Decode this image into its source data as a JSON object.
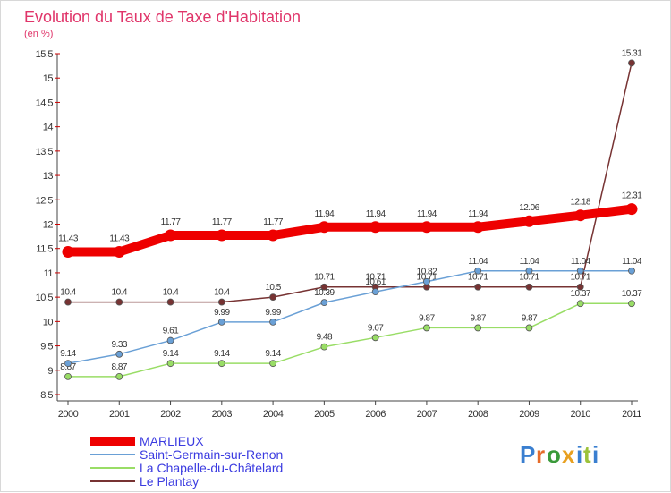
{
  "chart_data": {
    "type": "line",
    "title": "Evolution du Taux de Taxe d'Habitation",
    "subtitle": "(en %)",
    "xlabel": "",
    "ylabel": "",
    "categories": [
      "2000",
      "2001",
      "2002",
      "2003",
      "2004",
      "2005",
      "2006",
      "2007",
      "2008",
      "2009",
      "2010",
      "2011"
    ],
    "ylim": [
      8.5,
      15.5
    ],
    "yticks": [
      "8.5",
      "9",
      "9.5",
      "10",
      "10.5",
      "11",
      "11.5",
      "12",
      "12.5",
      "13",
      "13.5",
      "14",
      "14.5",
      "15",
      "15.5"
    ],
    "grid": false,
    "legend_position": "bottom-left",
    "series": [
      {
        "name": "MARLIEUX",
        "color": "#ee0000",
        "labels": [
          "11.43",
          "11.43",
          "11.77",
          "11.77",
          "11.77",
          "11.94",
          "11.94",
          "11.94",
          "11.94",
          "12.06",
          "12.18",
          "12.31"
        ]
      },
      {
        "name": "Saint-Germain-sur-Renon",
        "color": "#6aa0d6",
        "labels": [
          "9.14",
          "9.33",
          "9.61",
          "9.99",
          "9.99",
          "10.39",
          "10.61",
          "10.82",
          "11.04",
          "11.04",
          "11.04",
          "11.04"
        ]
      },
      {
        "name": "La Chapelle-du-Châtelard",
        "color": "#99dd66",
        "labels": [
          "8.87",
          "8.87",
          "9.14",
          "9.14",
          "9.14",
          "9.48",
          "9.67",
          "9.87",
          "9.87",
          "9.87",
          "10.37",
          "10.37"
        ]
      },
      {
        "name": "Le Plantay",
        "color": "#773333",
        "labels": [
          "10.4",
          "10.4",
          "10.4",
          "10.4",
          "10.5",
          "10.71",
          "10.71",
          "10.71",
          "10.71",
          "10.71",
          "10.71",
          "15.31"
        ]
      }
    ]
  },
  "brand": {
    "letters": [
      "P",
      "r",
      "o",
      "x",
      "i",
      "t",
      "i"
    ],
    "colors": [
      "#3a7fd0",
      "#e66b2a",
      "#3a9a3a",
      "#e8a020",
      "#3a7fd0",
      "#9cc23a",
      "#3a7fd0"
    ]
  }
}
